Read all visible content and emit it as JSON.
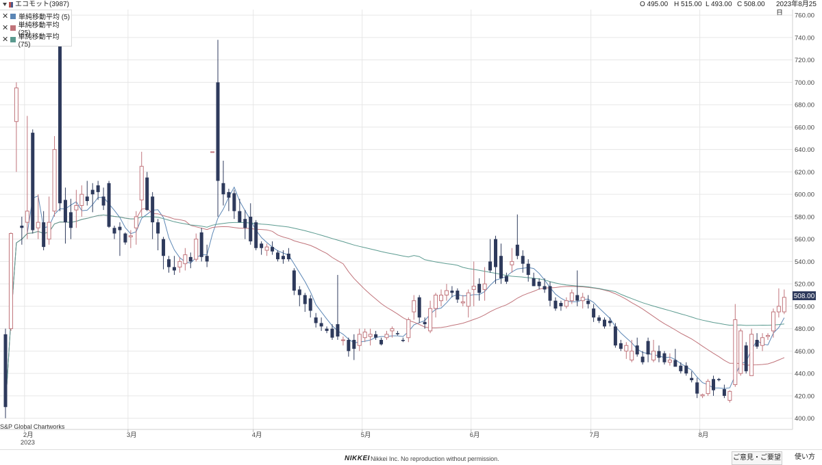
{
  "header": {
    "ticker_label": "エコモット(3987)",
    "ohlc": {
      "open": "O 495.00",
      "high": "H 515.00",
      "low": "L 493.00",
      "close": "C 508.00"
    },
    "date": "2023年8月25日"
  },
  "legend": [
    {
      "label": "単純移動平均 (5)",
      "color": "#5b86b5"
    },
    {
      "label": "単純移動平均 (25)",
      "color": "#c0737a"
    },
    {
      "label": "単純移動平均 (75)",
      "color": "#5a9a8f"
    }
  ],
  "price_tag": "508.00",
  "credit": "S&P Global Chartworks",
  "footer": {
    "brand": "NIKKEI",
    "copyright": "Nikkei Inc. No reproduction without permission.",
    "feedback_button": "ご意見・ご要望",
    "help_button": "使い方"
  },
  "colors": {
    "up": "#c0737a",
    "down": "#2e3a5c",
    "grid": "#e6e6e6"
  },
  "chart_data": {
    "type": "candlestick",
    "ylim": [
      390,
      765
    ],
    "y_ticks": [
      400,
      420,
      440,
      460,
      480,
      500,
      520,
      540,
      560,
      580,
      600,
      620,
      640,
      660,
      680,
      700,
      720,
      740,
      760
    ],
    "month_ticks": [
      {
        "label": "2月",
        "index": 3.5,
        "sublabel": "2023"
      },
      {
        "label": "3月",
        "index": 22.5
      },
      {
        "label": "4月",
        "index": 45.5
      },
      {
        "label": "5月",
        "index": 65.5
      },
      {
        "label": "6月",
        "index": 85.5
      },
      {
        "label": "7月",
        "index": 107.5
      },
      {
        "label": "8月",
        "index": 127.5
      }
    ],
    "candles": [
      [
        0,
        475,
        480,
        400,
        410
      ],
      [
        1,
        480,
        566,
        478,
        565
      ],
      [
        2,
        665,
        700,
        620,
        695
      ],
      [
        3,
        572,
        580,
        555,
        570
      ],
      [
        4,
        575,
        670,
        560,
        585
      ],
      [
        5,
        655,
        658,
        565,
        568
      ],
      [
        6,
        570,
        600,
        560,
        575
      ],
      [
        7,
        575,
        585,
        550,
        553
      ],
      [
        8,
        560,
        598,
        555,
        575
      ],
      [
        9,
        585,
        652,
        580,
        640
      ],
      [
        10,
        738,
        760,
        585,
        592
      ],
      [
        11,
        595,
        606,
        556,
        575
      ],
      [
        12,
        584,
        596,
        560,
        570
      ],
      [
        13,
        586,
        604,
        570,
        590
      ],
      [
        14,
        590,
        608,
        580,
        600
      ],
      [
        15,
        598,
        612,
        590,
        594
      ],
      [
        16,
        604,
        610,
        584,
        600
      ],
      [
        17,
        608,
        612,
        595,
        602
      ],
      [
        18,
        598,
        606,
        586,
        590
      ],
      [
        19,
        610,
        612,
        570,
        571
      ],
      [
        20,
        570,
        572,
        560,
        565
      ],
      [
        21,
        571,
        575,
        545,
        568
      ],
      [
        22,
        565,
        566,
        555,
        557
      ],
      [
        23,
        562,
        568,
        552,
        563
      ],
      [
        24,
        570,
        585,
        555,
        580
      ],
      [
        25,
        595,
        638,
        580,
        625
      ],
      [
        26,
        615,
        620,
        585,
        586
      ],
      [
        27,
        598,
        602,
        560,
        575
      ],
      [
        28,
        575,
        578,
        550,
        565
      ],
      [
        29,
        560,
        562,
        533,
        545
      ],
      [
        30,
        542,
        545,
        530,
        535
      ],
      [
        31,
        535,
        545,
        528,
        532
      ],
      [
        32,
        535,
        544,
        530,
        540
      ],
      [
        33,
        538,
        552,
        532,
        546
      ],
      [
        34,
        544,
        548,
        534,
        540
      ],
      [
        35,
        542,
        565,
        540,
        560
      ],
      [
        36,
        566,
        570,
        540,
        544
      ],
      [
        37,
        545,
        555,
        535,
        540
      ],
      [
        38,
        638,
        638,
        638,
        638
      ],
      [
        39,
        700,
        738,
        580,
        612
      ],
      [
        40,
        610,
        630,
        590,
        600
      ],
      [
        41,
        602,
        605,
        585,
        597
      ],
      [
        42,
        601,
        604,
        578,
        585
      ],
      [
        43,
        585,
        596,
        575,
        575
      ],
      [
        44,
        578,
        586,
        560,
        570
      ],
      [
        45,
        580,
        592,
        555,
        558
      ],
      [
        46,
        575,
        577,
        550,
        552
      ],
      [
        47,
        556,
        558,
        546,
        552
      ],
      [
        48,
        550,
        556,
        545,
        553
      ],
      [
        49,
        553,
        558,
        546,
        549
      ],
      [
        50,
        548,
        550,
        540,
        542
      ],
      [
        51,
        545,
        550,
        538,
        542
      ],
      [
        52,
        547,
        552,
        540,
        542
      ],
      [
        53,
        532,
        534,
        510,
        514
      ],
      [
        54,
        515,
        518,
        500,
        510
      ],
      [
        55,
        510,
        512,
        495,
        502
      ],
      [
        56,
        507,
        510,
        490,
        496
      ],
      [
        57,
        490,
        494,
        481,
        485
      ],
      [
        58,
        485,
        490,
        478,
        482
      ],
      [
        59,
        480,
        482,
        476,
        478
      ],
      [
        60,
        480,
        484,
        470,
        472
      ],
      [
        61,
        484,
        528,
        470,
        473
      ],
      [
        62,
        470,
        473,
        465,
        470
      ],
      [
        63,
        470,
        472,
        455,
        460
      ],
      [
        64,
        470,
        475,
        452,
        462
      ],
      [
        65,
        465,
        480,
        460,
        475
      ],
      [
        66,
        472,
        480,
        468,
        477
      ],
      [
        67,
        473,
        480,
        465,
        475
      ],
      [
        68,
        475,
        478,
        470,
        472
      ],
      [
        69,
        470,
        472,
        465,
        466
      ],
      [
        70,
        472,
        478,
        470,
        475
      ],
      [
        71,
        478,
        482,
        472,
        480
      ],
      [
        72,
        476,
        478,
        474,
        475
      ],
      [
        73,
        470,
        472,
        468,
        469
      ],
      [
        74,
        472,
        490,
        468,
        488
      ],
      [
        75,
        495,
        510,
        488,
        505
      ],
      [
        76,
        508,
        510,
        485,
        490
      ],
      [
        77,
        486,
        490,
        480,
        484
      ],
      [
        78,
        478,
        505,
        476,
        498
      ],
      [
        79,
        498,
        512,
        490,
        510
      ],
      [
        80,
        505,
        515,
        500,
        510
      ],
      [
        81,
        510,
        520,
        505,
        514
      ],
      [
        82,
        514,
        518,
        508,
        512
      ],
      [
        83,
        514,
        516,
        503,
        506
      ],
      [
        84,
        503,
        510,
        500,
        504
      ],
      [
        85,
        500,
        515,
        490,
        512
      ],
      [
        86,
        515,
        540,
        500,
        518
      ],
      [
        87,
        520,
        525,
        505,
        512
      ],
      [
        88,
        515,
        535,
        505,
        520
      ],
      [
        89,
        540,
        560,
        530,
        532
      ],
      [
        90,
        560,
        563,
        520,
        535
      ],
      [
        91,
        545,
        556,
        520,
        525
      ],
      [
        92,
        527,
        530,
        520,
        522
      ],
      [
        93,
        537,
        552,
        530,
        540
      ],
      [
        94,
        555,
        582,
        542,
        545
      ],
      [
        95,
        545,
        550,
        530,
        538
      ],
      [
        96,
        538,
        542,
        522,
        528
      ],
      [
        97,
        525,
        530,
        518,
        518
      ],
      [
        98,
        522,
        525,
        515,
        518
      ],
      [
        99,
        518,
        525,
        512,
        515
      ],
      [
        100,
        518,
        522,
        500,
        505
      ],
      [
        101,
        505,
        508,
        496,
        498
      ],
      [
        102,
        503,
        505,
        496,
        500
      ],
      [
        103,
        500,
        508,
        498,
        505
      ],
      [
        104,
        505,
        515,
        502,
        512
      ],
      [
        105,
        510,
        532,
        500,
        505
      ],
      [
        106,
        505,
        512,
        498,
        508
      ],
      [
        107,
        505,
        510,
        498,
        502
      ],
      [
        108,
        498,
        502,
        486,
        490
      ],
      [
        109,
        490,
        492,
        485,
        487
      ],
      [
        110,
        488,
        490,
        480,
        482
      ],
      [
        111,
        487,
        490,
        482,
        485
      ],
      [
        112,
        482,
        485,
        463,
        465
      ],
      [
        113,
        467,
        470,
        460,
        462
      ],
      [
        114,
        460,
        468,
        453,
        465
      ],
      [
        115,
        452,
        470,
        450,
        460
      ],
      [
        116,
        465,
        472,
        455,
        457
      ],
      [
        117,
        455,
        460,
        448,
        450
      ],
      [
        118,
        469,
        472,
        450,
        457
      ],
      [
        119,
        452,
        470,
        450,
        460
      ],
      [
        120,
        460,
        465,
        450,
        454
      ],
      [
        121,
        458,
        460,
        448,
        450
      ],
      [
        122,
        450,
        458,
        447,
        452
      ],
      [
        123,
        452,
        462,
        447,
        446
      ],
      [
        124,
        447,
        450,
        440,
        442
      ],
      [
        125,
        447,
        450,
        438,
        440
      ],
      [
        126,
        436,
        442,
        432,
        434
      ],
      [
        127,
        432,
        436,
        418,
        422
      ],
      [
        128,
        420,
        422,
        418,
        421
      ],
      [
        129,
        422,
        435,
        420,
        433
      ],
      [
        130,
        435,
        438,
        420,
        425
      ],
      [
        131,
        435,
        436,
        433,
        434
      ],
      [
        132,
        426,
        430,
        418,
        420
      ],
      [
        133,
        416,
        425,
        414,
        424
      ],
      [
        134,
        430,
        502,
        428,
        488
      ],
      [
        135,
        440,
        480,
        438,
        478
      ],
      [
        136,
        465,
        468,
        440,
        442
      ],
      [
        137,
        438,
        480,
        438,
        475
      ],
      [
        138,
        470,
        476,
        462,
        464
      ],
      [
        139,
        465,
        476,
        460,
        472
      ],
      [
        140,
        473,
        476,
        470,
        474
      ],
      [
        141,
        478,
        498,
        472,
        495
      ],
      [
        142,
        495,
        516,
        490,
        500
      ],
      [
        143,
        495,
        515,
        493,
        508
      ]
    ]
  }
}
